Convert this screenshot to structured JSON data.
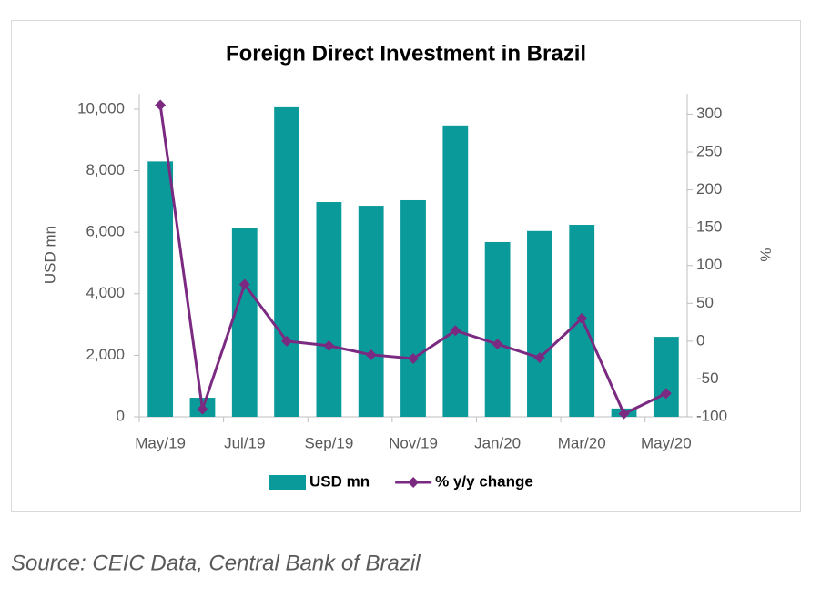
{
  "chart_data": {
    "type": "bar_line",
    "title": "Foreign Direct Investment in Brazil",
    "ylabel": "USD mn",
    "y2label": "%",
    "categories": [
      "May/19",
      null,
      "Jul/19",
      null,
      "Sep/19",
      null,
      "Nov/19",
      null,
      "Jan/20",
      null,
      "Mar/20",
      null,
      "May/20"
    ],
    "series": [
      {
        "name": "USD mn",
        "type": "bar",
        "color": "#0a9a9a",
        "values": [
          8300,
          620,
          6150,
          10060,
          6980,
          6860,
          7040,
          9470,
          5680,
          6040,
          6240,
          270,
          2600
        ]
      },
      {
        "name": "% y/y change",
        "type": "line",
        "axis": "y2",
        "color": "#7b2a82",
        "values": [
          312,
          -90,
          75,
          0,
          -6,
          -18,
          -23,
          14,
          -4,
          -22,
          30,
          -96,
          -69
        ]
      }
    ],
    "ylim": [
      0,
      10500
    ],
    "yticks": [
      0,
      {
        "value": 2000,
        "label": "2,000"
      },
      {
        "value": 4000,
        "label": "4,000"
      },
      {
        "value": 6000,
        "label": "6,000"
      },
      {
        "value": 8000,
        "label": "8,000"
      },
      {
        "value": 10000,
        "label": "10,000"
      }
    ],
    "y2lim": [
      -100,
      327
    ],
    "y2ticks": [
      -100,
      -50,
      0,
      50,
      100,
      150,
      200,
      250,
      300
    ],
    "legend": "bottom"
  },
  "source": "Source: CEIC Data, Central Bank of Brazil"
}
